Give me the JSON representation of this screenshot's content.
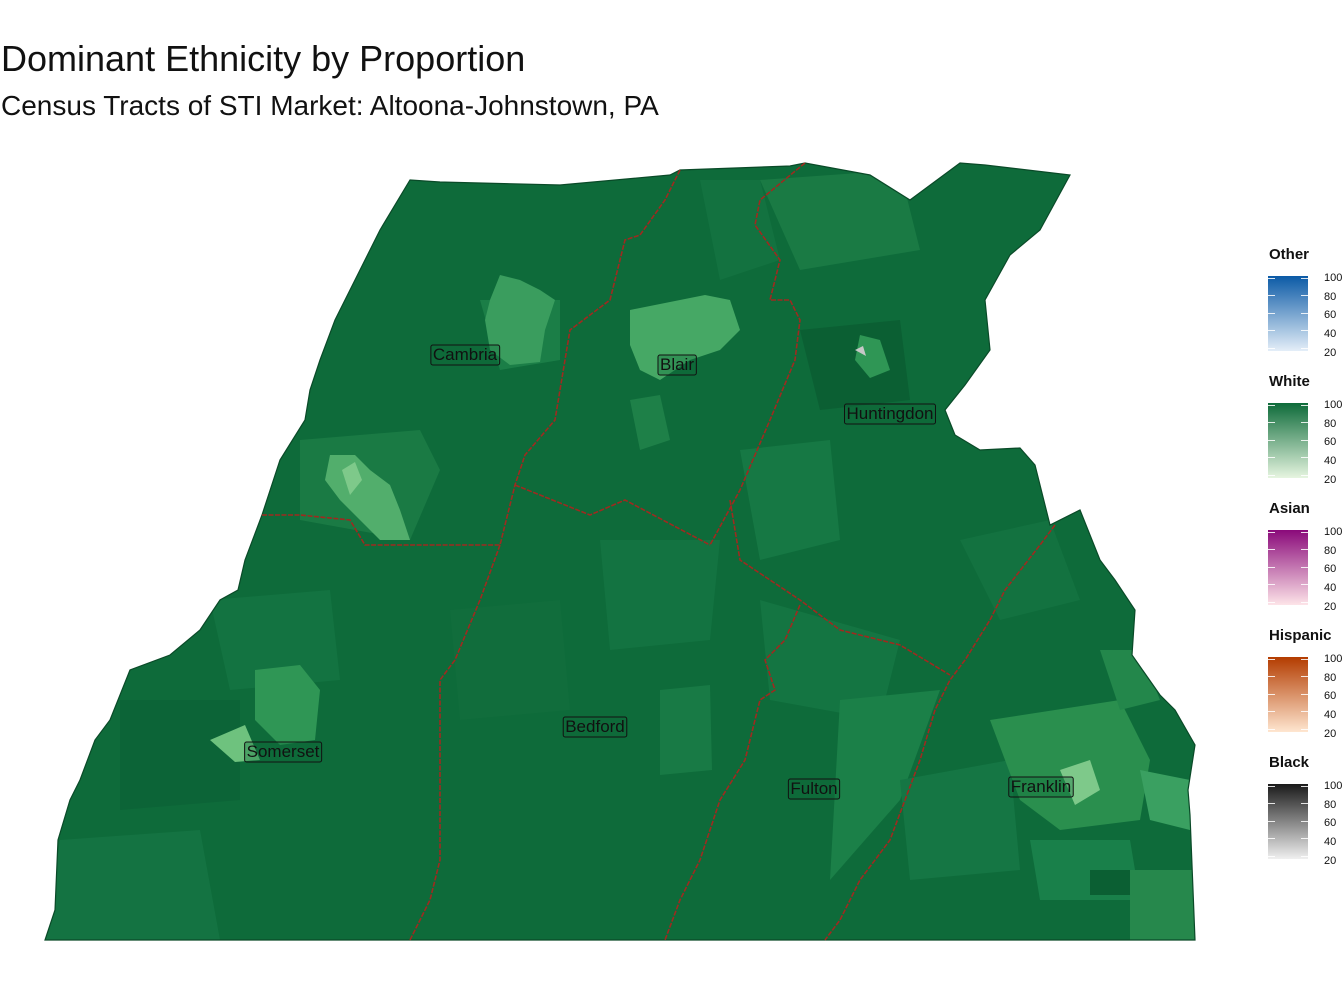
{
  "title": "Dominant Ethnicity by Proportion",
  "subtitle": "Census Tracts of STI Market: Altoona-Johnstown, PA",
  "map": {
    "base_color": "#0e6b3a",
    "border_color": "#9e2a1f",
    "counties": [
      {
        "name": "Cambria"
      },
      {
        "name": "Blair"
      },
      {
        "name": "Huntingdon"
      },
      {
        "name": "Somerset"
      },
      {
        "name": "Bedford"
      },
      {
        "name": "Fulton"
      },
      {
        "name": "Franklin"
      }
    ]
  },
  "legend": [
    {
      "title": "Other",
      "color_high": "#0b5aa6",
      "color_low": "#e4eef8",
      "ticks": [
        "100",
        "80",
        "60",
        "40",
        "20"
      ]
    },
    {
      "title": "White",
      "color_high": "#0e6b3a",
      "color_low": "#e6f5e0",
      "ticks": [
        "100",
        "80",
        "60",
        "40",
        "20"
      ]
    },
    {
      "title": "Asian",
      "color_high": "#8a0a7a",
      "color_low": "#fde4e8",
      "ticks": [
        "100",
        "80",
        "60",
        "40",
        "20"
      ]
    },
    {
      "title": "Hispanic",
      "color_high": "#b33c00",
      "color_low": "#fee6d0",
      "ticks": [
        "100",
        "80",
        "60",
        "40",
        "20"
      ]
    },
    {
      "title": "Black",
      "color_high": "#1a1a1a",
      "color_low": "#f0f0f0",
      "ticks": [
        "100",
        "80",
        "60",
        "40",
        "20"
      ]
    }
  ]
}
